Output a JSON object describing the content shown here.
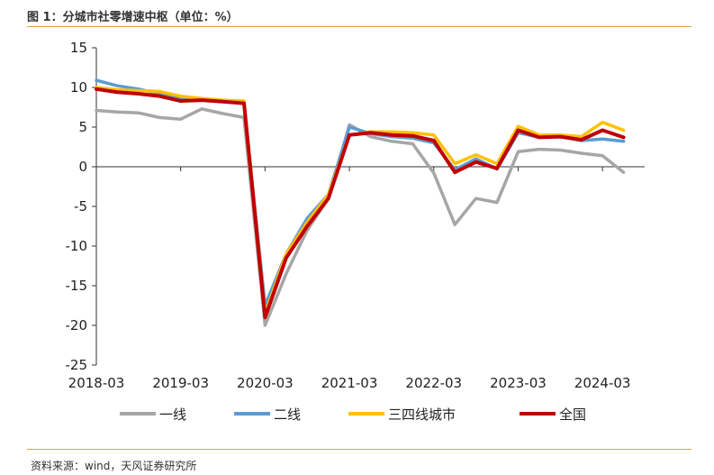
{
  "header": {
    "title": "图 1：分城市社零增速中枢（单位：%）"
  },
  "footer": {
    "source": "资料来源：wind，天风证券研究所"
  },
  "chart_data": {
    "type": "line",
    "title": "",
    "xlabel": "",
    "ylabel": "",
    "ylim": [
      -25,
      15
    ],
    "yticks": [
      15,
      10,
      5,
      0,
      -5,
      -10,
      -15,
      -20,
      -25
    ],
    "x": [
      "2018-03",
      "2018-06",
      "2018-09",
      "2018-12",
      "2019-03",
      "2019-06",
      "2019-09",
      "2019-12",
      "2020-03",
      "2020-06",
      "2020-09",
      "2020-12",
      "2021-03",
      "2021-06",
      "2021-09",
      "2021-12",
      "2022-03",
      "2022-06",
      "2022-09",
      "2022-12",
      "2023-03",
      "2023-06",
      "2023-09",
      "2023-12",
      "2024-03",
      "2024-06"
    ],
    "xticks": [
      "2018-03",
      "2019-03",
      "2020-03",
      "2021-03",
      "2022-03",
      "2023-03",
      "2024-03"
    ],
    "grid": false,
    "legend_position": "bottom",
    "series": [
      {
        "name": "一线",
        "color": "#a6a6a6",
        "values": [
          7.1,
          6.9,
          6.8,
          6.2,
          6.0,
          7.3,
          6.7,
          6.2,
          -20.0,
          -13.5,
          -8.0,
          -4.0,
          5.3,
          3.8,
          3.2,
          2.9,
          -0.8,
          -7.3,
          -4.0,
          -4.5,
          1.9,
          2.2,
          2.1,
          1.7,
          1.4,
          -0.7
        ]
      },
      {
        "name": "二线",
        "color": "#5b9bd5",
        "values": [
          10.9,
          10.2,
          9.8,
          9.2,
          8.6,
          8.4,
          8.2,
          8.0,
          -17.5,
          -11.0,
          -6.5,
          -3.5,
          5.0,
          4.2,
          3.8,
          3.6,
          3.0,
          -0.4,
          1.0,
          -0.3,
          4.3,
          3.7,
          3.8,
          3.3,
          3.5,
          3.2
        ]
      },
      {
        "name": "三四线城市",
        "color": "#ffc000",
        "values": [
          10.0,
          9.7,
          9.6,
          9.5,
          8.9,
          8.6,
          8.4,
          8.3,
          -18.5,
          -11.0,
          -7.0,
          -3.5,
          4.0,
          4.4,
          4.4,
          4.3,
          4.0,
          0.4,
          1.5,
          0.4,
          5.1,
          4.0,
          4.0,
          3.8,
          5.6,
          4.6
        ]
      },
      {
        "name": "全国",
        "color": "#c00000",
        "values": [
          9.8,
          9.4,
          9.2,
          8.9,
          8.3,
          8.4,
          8.2,
          8.0,
          -19.0,
          -11.5,
          -7.5,
          -4.0,
          4.0,
          4.3,
          4.0,
          3.9,
          3.3,
          -0.7,
          0.6,
          -0.2,
          4.6,
          3.7,
          3.8,
          3.4,
          4.6,
          3.7
        ]
      }
    ]
  }
}
